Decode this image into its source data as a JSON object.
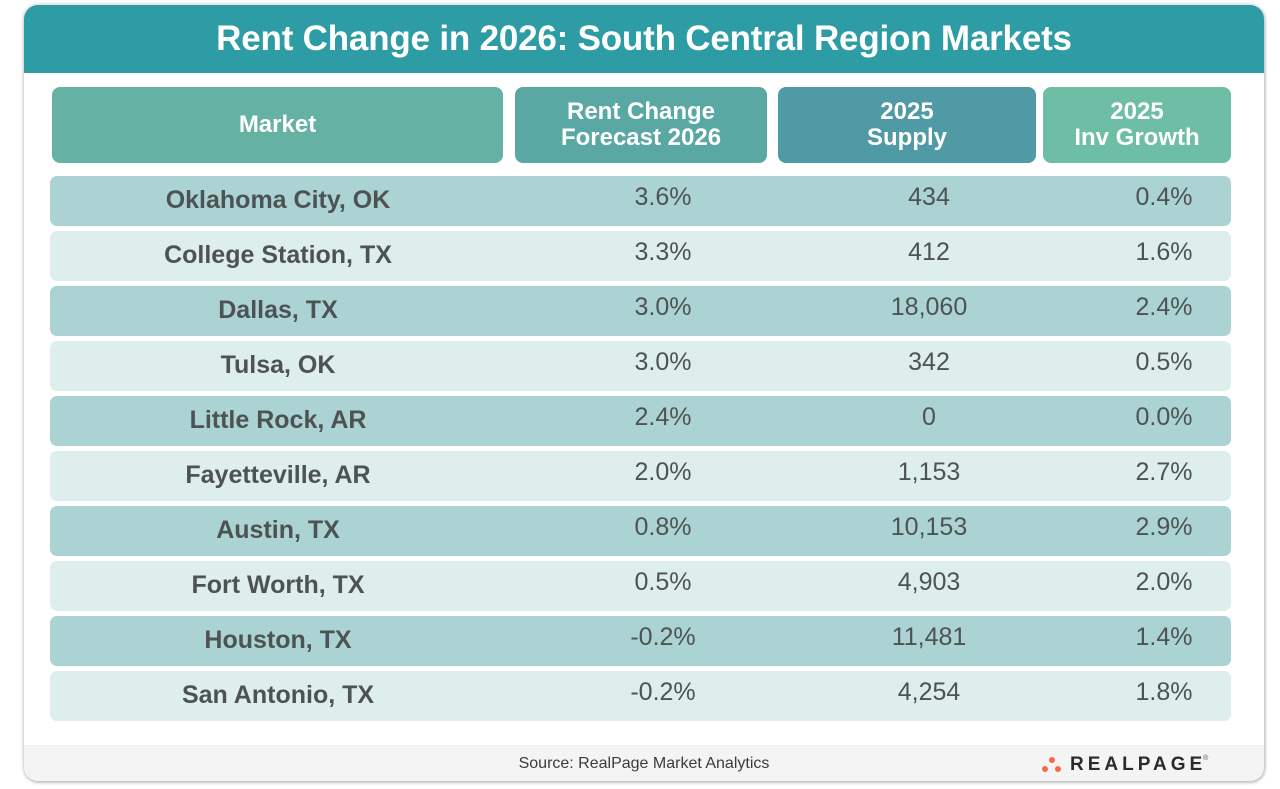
{
  "title": "Rent Change in 2026: South Central Region Markets",
  "colors": {
    "title_bg": "#2e9ca4",
    "header_market": "#65b2a4",
    "header_rent_change": "#5aa8a4",
    "header_supply": "#4f9aa4",
    "header_inv_growth": "#6dbea4",
    "row_dark": "#acd3d3",
    "row_light": "#deeeed",
    "text": "#4d5353",
    "logo_dots": "#f26b4a"
  },
  "columns": [
    {
      "line1": "Market",
      "line2": ""
    },
    {
      "line1": "Rent Change",
      "line2": "Forecast 2026"
    },
    {
      "line1": "2025",
      "line2": "Supply"
    },
    {
      "line1": "2025",
      "line2": "Inv Growth"
    }
  ],
  "chart_data": {
    "type": "table",
    "title": "Rent Change in 2026: South Central Region Markets",
    "columns": [
      "Market",
      "Rent Change Forecast 2026",
      "2025 Supply",
      "2025 Inv Growth"
    ],
    "rows": [
      [
        "Oklahoma City, OK",
        "3.6%",
        "434",
        "0.4%"
      ],
      [
        "College Station, TX",
        "3.3%",
        "412",
        "1.6%"
      ],
      [
        "Dallas, TX",
        "3.0%",
        "18,060",
        "2.4%"
      ],
      [
        "Tulsa, OK",
        "3.0%",
        "342",
        "0.5%"
      ],
      [
        "Little Rock, AR",
        "2.4%",
        "0",
        "0.0%"
      ],
      [
        "Fayetteville, AR",
        "2.0%",
        "1,153",
        "2.7%"
      ],
      [
        "Austin, TX",
        "0.8%",
        "10,153",
        "2.9%"
      ],
      [
        "Fort Worth, TX",
        "0.5%",
        "4,903",
        "2.0%"
      ],
      [
        "Houston, TX",
        "-0.2%",
        "11,481",
        "1.4%"
      ],
      [
        "San Antonio, TX",
        "-0.2%",
        "4,254",
        "1.8%"
      ]
    ]
  },
  "footer": {
    "source": "Source:  RealPage Market Analytics",
    "logo_text": "REALPAGE",
    "logo_mark": "®"
  }
}
